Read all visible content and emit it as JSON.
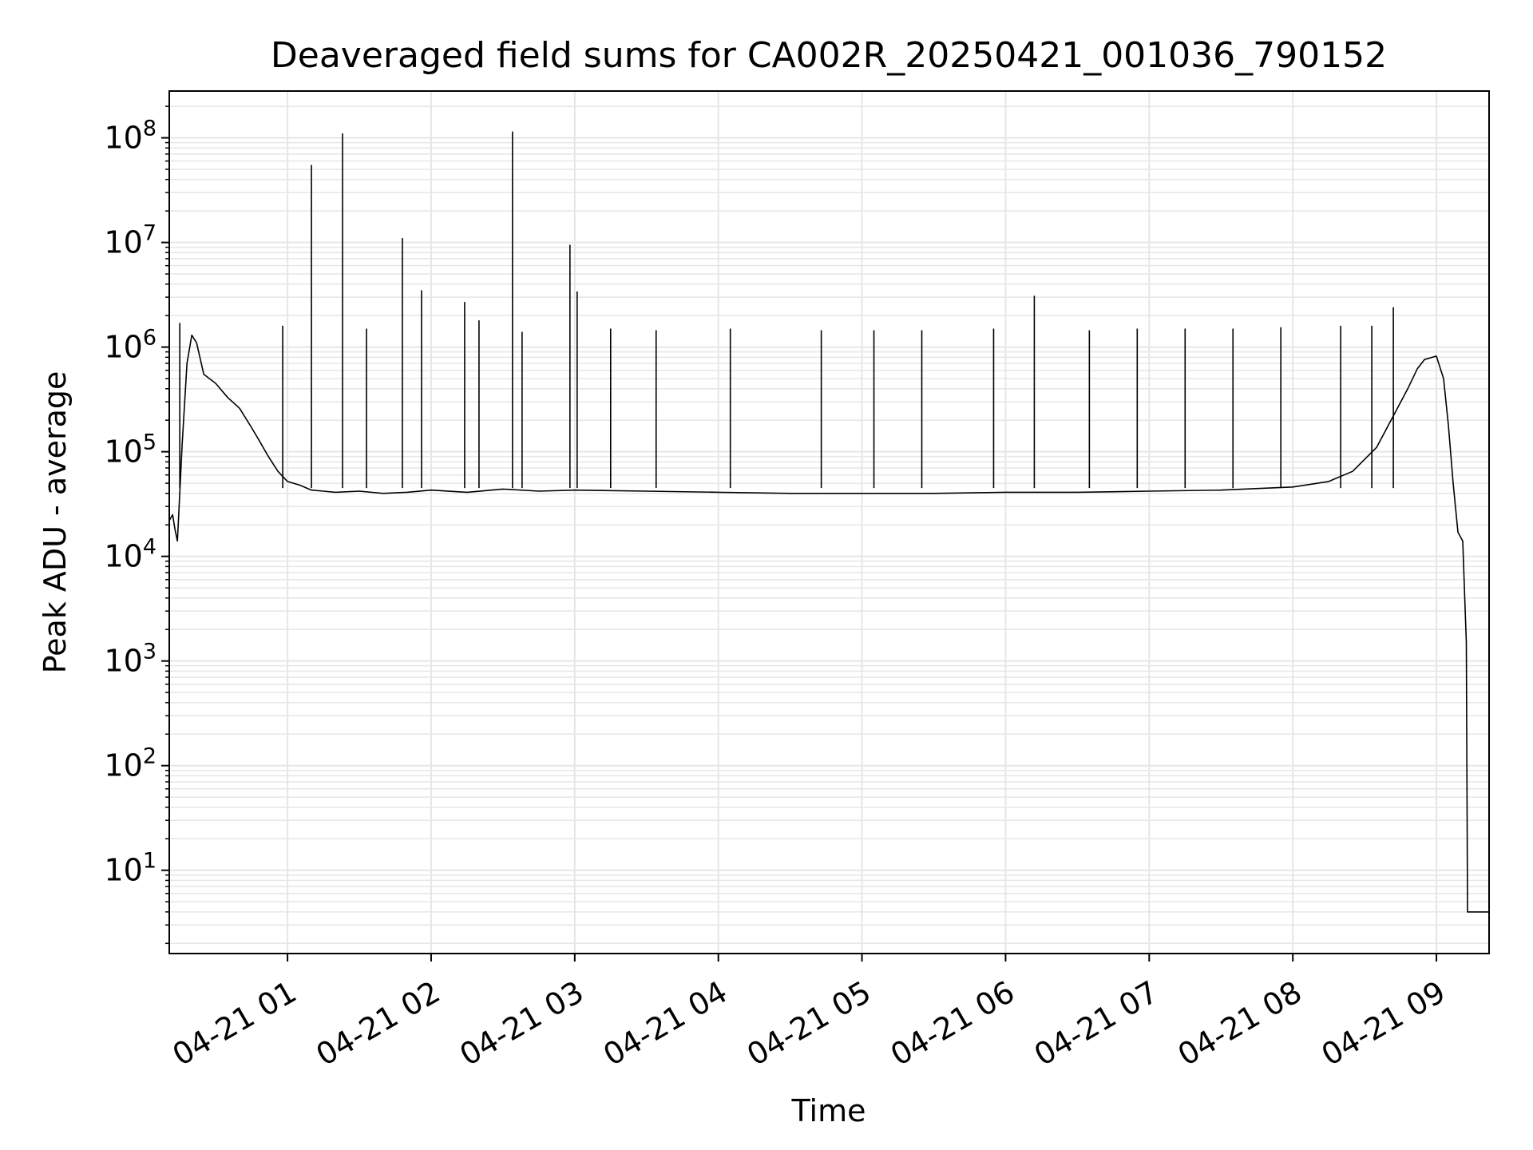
{
  "chart_data": {
    "type": "line",
    "title": "Deaveraged field sums for CA002R_20250421_001036_790152",
    "xlabel": "Time",
    "ylabel": "Peak ADU - average",
    "y_scale": "log",
    "ylim": [
      1.6,
      280000000
    ],
    "xlim": [
      "2025-04-21 00:10:36",
      "2025-04-21 09:22:00"
    ],
    "x_ticks": [
      {
        "value": "2025-04-21 01:00",
        "label": "04-21 01"
      },
      {
        "value": "2025-04-21 02:00",
        "label": "04-21 02"
      },
      {
        "value": "2025-04-21 03:00",
        "label": "04-21 03"
      },
      {
        "value": "2025-04-21 04:00",
        "label": "04-21 04"
      },
      {
        "value": "2025-04-21 05:00",
        "label": "04-21 05"
      },
      {
        "value": "2025-04-21 06:00",
        "label": "04-21 06"
      },
      {
        "value": "2025-04-21 07:00",
        "label": "04-21 07"
      },
      {
        "value": "2025-04-21 08:00",
        "label": "04-21 08"
      },
      {
        "value": "2025-04-21 09:00",
        "label": "04-21 09"
      }
    ],
    "y_ticks": [
      {
        "value": 10,
        "base": "10",
        "exp": "1"
      },
      {
        "value": 100,
        "base": "10",
        "exp": "2"
      },
      {
        "value": 1000,
        "base": "10",
        "exp": "3"
      },
      {
        "value": 10000,
        "base": "10",
        "exp": "4"
      },
      {
        "value": 100000,
        "base": "10",
        "exp": "5"
      },
      {
        "value": 1000000,
        "base": "10",
        "exp": "6"
      },
      {
        "value": 10000000,
        "base": "10",
        "exp": "7"
      },
      {
        "value": 100000000,
        "base": "10",
        "exp": "8"
      }
    ],
    "grid": true,
    "grid_minor": true,
    "legend": "none",
    "line_color": "#000000",
    "grid_color": "#e6e6e6",
    "series": [
      {
        "x": [
          "2025-04-21 00:10:36",
          "2025-04-21 00:12:00",
          "2025-04-21 00:13:00",
          "2025-04-21 00:14:00",
          "2025-04-21 00:16:00",
          "2025-04-21 00:18:00",
          "2025-04-21 00:20:00",
          "2025-04-21 00:22:00",
          "2025-04-21 00:25:00",
          "2025-04-21 00:30:00",
          "2025-04-21 00:35:00",
          "2025-04-21 00:40:00",
          "2025-04-21 00:45:00",
          "2025-04-21 00:48:00",
          "2025-04-21 00:52:00",
          "2025-04-21 00:56:00",
          "2025-04-21 01:00:00",
          "2025-04-21 01:05:00",
          "2025-04-21 01:10:00",
          "2025-04-21 01:15:00",
          "2025-04-21 01:20:00",
          "2025-04-21 01:30:00",
          "2025-04-21 01:40:00",
          "2025-04-21 01:50:00",
          "2025-04-21 02:00:00",
          "2025-04-21 02:15:00",
          "2025-04-21 02:30:00",
          "2025-04-21 02:45:00",
          "2025-04-21 03:00:00",
          "2025-04-21 03:30:00",
          "2025-04-21 04:00:00",
          "2025-04-21 04:30:00",
          "2025-04-21 05:00:00",
          "2025-04-21 05:30:00",
          "2025-04-21 06:00:00",
          "2025-04-21 06:30:00",
          "2025-04-21 07:00:00",
          "2025-04-21 07:30:00",
          "2025-04-21 08:00:00",
          "2025-04-21 08:15:00",
          "2025-04-21 08:25:00",
          "2025-04-21 08:35:00",
          "2025-04-21 08:42:00",
          "2025-04-21 08:48:00",
          "2025-04-21 08:52:00",
          "2025-04-21 08:55:00",
          "2025-04-21 09:00:00",
          "2025-04-21 09:03:00",
          "2025-04-21 09:05:00",
          "2025-04-21 09:07:00",
          "2025-04-21 09:09:00",
          "2025-04-21 09:11:00",
          "2025-04-21 09:12:30",
          "2025-04-21 09:13:00",
          "2025-04-21 09:22:00"
        ],
        "y": [
          22000,
          25000,
          18000,
          14000,
          120000,
          700000,
          1300000,
          1100000,
          550000,
          450000,
          330000,
          260000,
          170000,
          130000,
          90000,
          65000,
          52000,
          48000,
          43000,
          42000,
          41000,
          42000,
          40000,
          41000,
          43000,
          41000,
          44000,
          42000,
          43000,
          42000,
          41000,
          40000,
          40000,
          40000,
          41000,
          41000,
          42000,
          43000,
          46000,
          52000,
          65000,
          110000,
          220000,
          400000,
          620000,
          760000,
          820000,
          500000,
          180000,
          50000,
          17000,
          14000,
          1500,
          4,
          4
        ]
      }
    ],
    "spikes": [
      {
        "x": "2025-04-21 01:10:00",
        "y": 55000000
      },
      {
        "x": "2025-04-21 01:23:00",
        "y": 110000000
      },
      {
        "x": "2025-04-21 01:48:00",
        "y": 11000000
      },
      {
        "x": "2025-04-21 02:34:00",
        "y": 115000000
      },
      {
        "x": "2025-04-21 02:58:00",
        "y": 9500000
      },
      {
        "x": "2025-04-21 03:01:00",
        "y": 3400000
      },
      {
        "x": "2025-04-21 01:56:00",
        "y": 3500000
      },
      {
        "x": "2025-04-21 02:14:00",
        "y": 2700000
      },
      {
        "x": "2025-04-21 06:12:00",
        "y": 3100000
      },
      {
        "x": "2025-04-21 08:42:00",
        "y": 2400000
      },
      {
        "x": "2025-04-21 00:15:00",
        "y": 1700000
      },
      {
        "x": "2025-04-21 00:58:00",
        "y": 1600000
      },
      {
        "x": "2025-04-21 01:33:00",
        "y": 1500000
      },
      {
        "x": "2025-04-21 02:20:00",
        "y": 1800000
      },
      {
        "x": "2025-04-21 02:38:00",
        "y": 1400000
      },
      {
        "x": "2025-04-21 03:15:00",
        "y": 1500000
      },
      {
        "x": "2025-04-21 03:34:00",
        "y": 1450000
      },
      {
        "x": "2025-04-21 04:05:00",
        "y": 1500000
      },
      {
        "x": "2025-04-21 04:43:00",
        "y": 1450000
      },
      {
        "x": "2025-04-21 05:05:00",
        "y": 1450000
      },
      {
        "x": "2025-04-21 05:25:00",
        "y": 1450000
      },
      {
        "x": "2025-04-21 05:55:00",
        "y": 1500000
      },
      {
        "x": "2025-04-21 06:35:00",
        "y": 1450000
      },
      {
        "x": "2025-04-21 06:55:00",
        "y": 1500000
      },
      {
        "x": "2025-04-21 07:15:00",
        "y": 1500000
      },
      {
        "x": "2025-04-21 07:35:00",
        "y": 1500000
      },
      {
        "x": "2025-04-21 07:55:00",
        "y": 1550000
      },
      {
        "x": "2025-04-21 08:20:00",
        "y": 1600000
      },
      {
        "x": "2025-04-21 08:33:00",
        "y": 1600000
      }
    ]
  }
}
